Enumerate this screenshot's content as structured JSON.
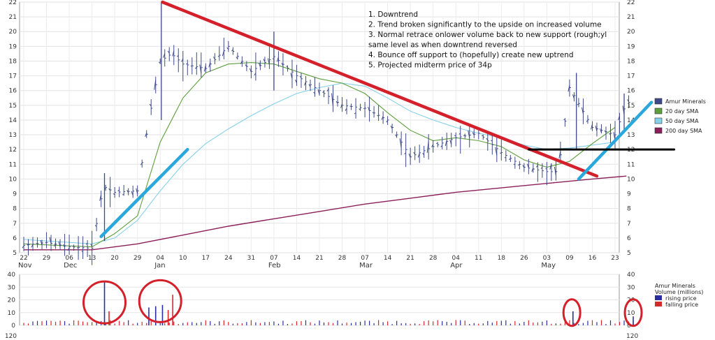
{
  "chart_data": [
    {
      "type": "line",
      "panel": "price",
      "ylim": [
        5,
        22
      ],
      "yticks": [
        5,
        6,
        7,
        8,
        9,
        10,
        11,
        12,
        13,
        14,
        15,
        16,
        17,
        18,
        19,
        20,
        21,
        22
      ],
      "x_tick_labels": [
        "22",
        "29",
        "06",
        "13",
        "20",
        "29",
        "04",
        "10",
        "17",
        "24",
        "31",
        "07",
        "14",
        "21",
        "28",
        "07",
        "14",
        "21",
        "28",
        "04",
        "11",
        "18",
        "26",
        "03",
        "09",
        "16",
        "23"
      ],
      "month_labels": [
        {
          "label": "Nov",
          "at": "22"
        },
        {
          "label": "Dec",
          "at": "06"
        },
        {
          "label": "Jan",
          "at": "04"
        },
        {
          "label": "Feb",
          "at": "07"
        },
        {
          "label": "Mar",
          "at": "07"
        },
        {
          "label": "Apr",
          "at": "04"
        },
        {
          "label": "May",
          "at": "03"
        }
      ],
      "grid": true,
      "legend_position": "right",
      "legend": [
        {
          "label": "Amur Minerals",
          "color": "#3d4a8a",
          "kind": "box"
        },
        {
          "label": "20 day SMA",
          "color": "#5e9e3c",
          "kind": "box"
        },
        {
          "label": "50 day SMA",
          "color": "#86d0ea",
          "kind": "box"
        },
        {
          "label": "200 day SMA",
          "color": "#8c1f5a",
          "kind": "box"
        }
      ],
      "price_ohlc_weekly_approx": [
        [
          0,
          5.5
        ],
        [
          1,
          5.7
        ],
        [
          2,
          5.4
        ],
        [
          3,
          5.3
        ],
        [
          3.5,
          9.5
        ],
        [
          4,
          9.1
        ],
        [
          5,
          9.2
        ],
        [
          5.5,
          14
        ],
        [
          6,
          18
        ],
        [
          6.5,
          18.5
        ],
        [
          7,
          17.8
        ],
        [
          8,
          17.5
        ],
        [
          9,
          19
        ],
        [
          10,
          17.3
        ],
        [
          11,
          18.3
        ],
        [
          12,
          17
        ],
        [
          13,
          16
        ],
        [
          14,
          15
        ],
        [
          15,
          14.8
        ],
        [
          16,
          14
        ],
        [
          17,
          11.5
        ],
        [
          18,
          12.2
        ],
        [
          19,
          12.8
        ],
        [
          20,
          13.1
        ],
        [
          21,
          11.8
        ],
        [
          22,
          10.8
        ],
        [
          23,
          10.5
        ],
        [
          23.5,
          10.5
        ],
        [
          24,
          16.2
        ],
        [
          25,
          13.5
        ],
        [
          26,
          13
        ],
        [
          26.5,
          15.2
        ]
      ],
      "sma20_approx": [
        [
          0,
          5.6
        ],
        [
          3,
          5.4
        ],
        [
          4,
          6.3
        ],
        [
          5,
          7.5
        ],
        [
          6,
          12.5
        ],
        [
          7,
          15.5
        ],
        [
          8,
          17.2
        ],
        [
          9,
          17.8
        ],
        [
          10,
          17.9
        ],
        [
          11,
          17.8
        ],
        [
          12,
          17.3
        ],
        [
          13,
          16.8
        ],
        [
          14,
          16.5
        ],
        [
          15,
          15.8
        ],
        [
          16,
          14.5
        ],
        [
          17,
          13.3
        ],
        [
          18,
          12.6
        ],
        [
          19,
          12.8
        ],
        [
          20,
          12.6
        ],
        [
          21,
          12.2
        ],
        [
          22,
          11.3
        ],
        [
          23,
          10.8
        ],
        [
          24,
          11.2
        ],
        [
          25,
          12.4
        ],
        [
          26,
          13.5
        ]
      ],
      "sma50_approx": [
        [
          0,
          5.9
        ],
        [
          3,
          5.6
        ],
        [
          4,
          6
        ],
        [
          5,
          7.2
        ],
        [
          6,
          9.2
        ],
        [
          7,
          11
        ],
        [
          8,
          12.4
        ],
        [
          9,
          13.4
        ],
        [
          10,
          14.3
        ],
        [
          11,
          15.1
        ],
        [
          12,
          15.8
        ],
        [
          13,
          16.2
        ],
        [
          14,
          16.5
        ],
        [
          15,
          16.3
        ],
        [
          16,
          15.5
        ],
        [
          17,
          14.6
        ],
        [
          18,
          14
        ],
        [
          19,
          13.5
        ],
        [
          20,
          13.1
        ],
        [
          21,
          12.8
        ],
        [
          22,
          12.3
        ],
        [
          23,
          12
        ],
        [
          24,
          12.1
        ],
        [
          25,
          12.3
        ],
        [
          26,
          12.5
        ]
      ],
      "sma200_approx": [
        [
          0,
          5.2
        ],
        [
          3,
          5.2
        ],
        [
          5,
          5.6
        ],
        [
          7,
          6.2
        ],
        [
          9,
          6.8
        ],
        [
          11,
          7.3
        ],
        [
          13,
          7.8
        ],
        [
          15,
          8.3
        ],
        [
          17,
          8.7
        ],
        [
          19,
          9.1
        ],
        [
          21,
          9.4
        ],
        [
          23,
          9.7
        ],
        [
          25,
          10
        ],
        [
          26.5,
          10.2
        ]
      ],
      "annotations": [
        "1. Downtrend",
        "2. Trend broken significantly to the upside on increased volume",
        "3. Normal retrace onlower volume back to new support (rough;yl",
        "same level as when downtrend reversed",
        "4. Bounce off support to (hopefully) create new uptrend",
        "5. Projected midterm price of 34p"
      ],
      "drawn_lines": [
        {
          "name": "downtrend",
          "color": "#d4202a",
          "from": [
            6.1,
            22
          ],
          "to": [
            25.2,
            10.2
          ]
        },
        {
          "name": "uptrend-1",
          "color": "#2aa8dc",
          "from": [
            3.4,
            6.1
          ],
          "to": [
            7.2,
            12
          ]
        },
        {
          "name": "uptrend-2",
          "color": "#2aa8dc",
          "from": [
            24.4,
            10
          ],
          "to": [
            27.6,
            15.2
          ]
        },
        {
          "name": "support",
          "color": "#000000",
          "from": [
            22.2,
            12
          ],
          "to": [
            28.6,
            12
          ]
        }
      ]
    },
    {
      "type": "bar",
      "panel": "volume",
      "ylim": [
        0,
        40
      ],
      "yticks": [
        0,
        10,
        20,
        30,
        40
      ],
      "legend": [
        {
          "label": "Amur Minerals",
          "kind": "text"
        },
        {
          "label": "Volume (millions)",
          "kind": "text"
        },
        {
          "label": "rising price",
          "color": "#2b2f9e",
          "kind": "box"
        },
        {
          "label": "falling price",
          "color": "#d42a2a",
          "kind": "box"
        }
      ],
      "spikes_approx": [
        {
          "x": 3.55,
          "v": 35,
          "color": "#2b2f9e"
        },
        {
          "x": 3.75,
          "v": 11,
          "color": "#d42a2a"
        },
        {
          "x": 5.5,
          "v": 14,
          "color": "#2b2f9e"
        },
        {
          "x": 5.8,
          "v": 15,
          "color": "#2b2f9e"
        },
        {
          "x": 6.1,
          "v": 16,
          "color": "#2b2f9e"
        },
        {
          "x": 6.35,
          "v": 12,
          "color": "#d42a2a"
        },
        {
          "x": 6.55,
          "v": 24,
          "color": "#d42a2a"
        },
        {
          "x": 24.15,
          "v": 11,
          "color": "#2b2f9e"
        },
        {
          "x": 26.8,
          "v": 7,
          "color": "#2b2f9e"
        }
      ],
      "circles_approx": [
        {
          "x": 3.55,
          "v": 18
        },
        {
          "x": 6.0,
          "v": 19
        },
        {
          "x": 24.1,
          "v": 10
        },
        {
          "x": 26.8,
          "v": 10
        }
      ],
      "bottom_tick_label": "120",
      "red_circle_color": "#d4202a"
    }
  ]
}
